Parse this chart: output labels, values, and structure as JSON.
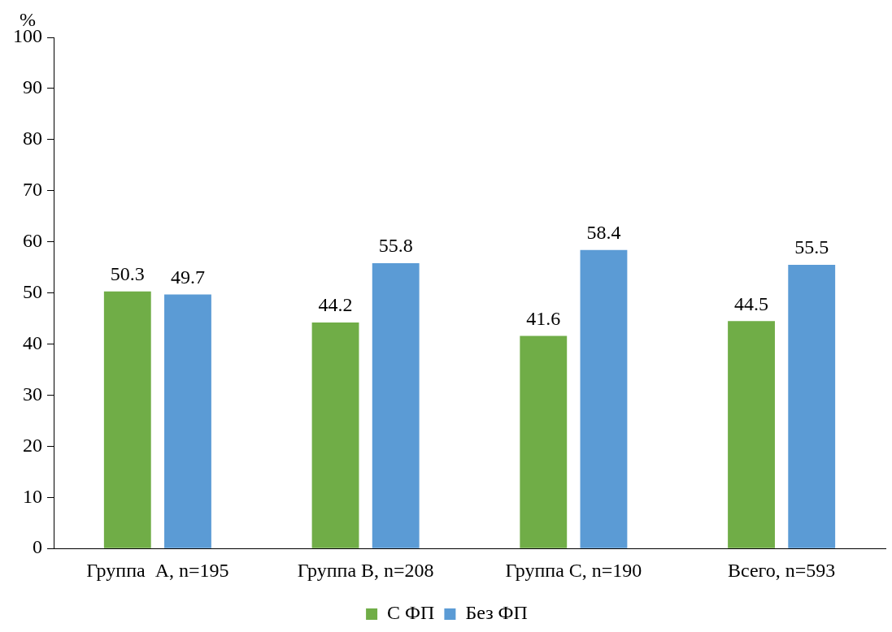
{
  "chart_data": {
    "type": "bar",
    "ylabel": "%",
    "categories": [
      "Группа  A, n=195",
      "Группа B, n=208",
      "Группа C, n=190",
      "Всего, n=593"
    ],
    "series": [
      {
        "name": "С ФП",
        "color": "#70ad47",
        "values": [
          50.3,
          44.2,
          41.6,
          44.5
        ]
      },
      {
        "name": "Без ФП",
        "color": "#5b9bd5",
        "values": [
          49.7,
          55.8,
          58.4,
          55.5
        ]
      }
    ],
    "ylim": [
      0,
      100
    ],
    "yticks": [
      0,
      10,
      20,
      30,
      40,
      50,
      60,
      70,
      80,
      90,
      100
    ],
    "grid": false,
    "legend": "bottom",
    "data_labels": true
  }
}
